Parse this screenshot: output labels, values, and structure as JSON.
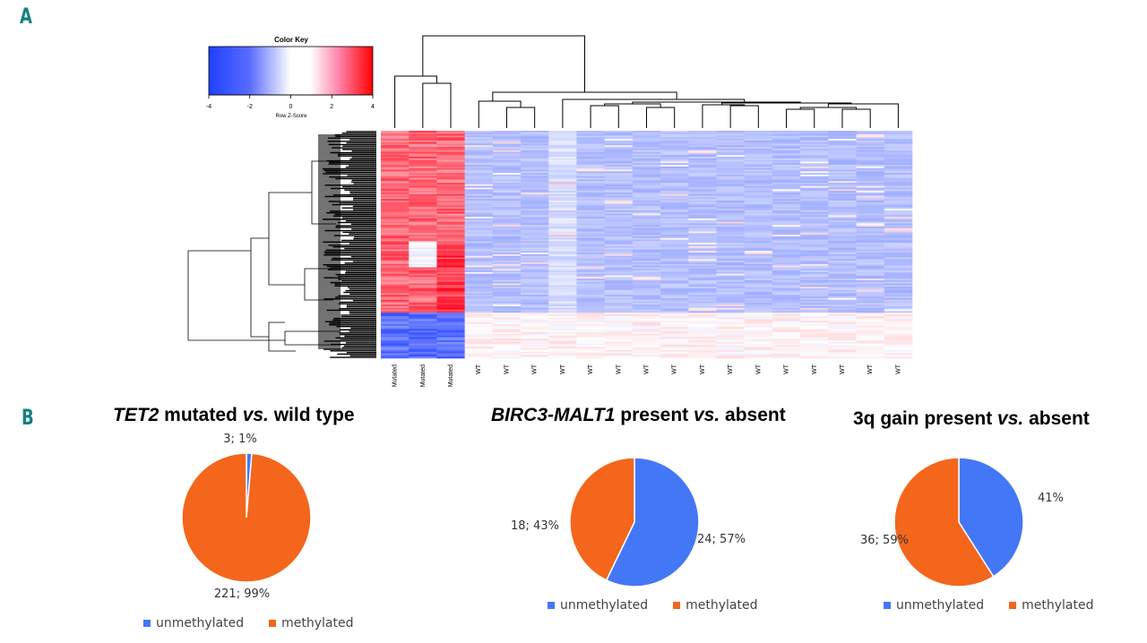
{
  "panels": {
    "a": "A",
    "b": "B"
  },
  "colors": {
    "blue": "#4477f6",
    "orange": "#f4661b",
    "teal": "#17807f"
  },
  "chart_data": [
    {
      "type": "heatmap",
      "title": "",
      "color_key": {
        "title": "Color Key",
        "xlabel": "Row Z-Score",
        "range": [
          -4,
          4
        ],
        "ticks": [
          "-4",
          "-2",
          "0",
          "2",
          "4"
        ],
        "low_color": "#2040ff",
        "mid_color": "#ffffff",
        "high_color": "#ff0000"
      },
      "columns": [
        "Mutated",
        "Mutated",
        "Mutated",
        "WT",
        "WT",
        "WT",
        "WT",
        "WT",
        "WT",
        "WT",
        "WT",
        "WT",
        "WT",
        "WT",
        "WT",
        "WT",
        "WT",
        "WT",
        "WT"
      ],
      "row_dendrogram": true,
      "column_dendrogram": true
    },
    {
      "type": "pie",
      "title": {
        "italic1": "TET2",
        "text1": " mutated ",
        "italic2": "vs.",
        "text2": " wild type"
      },
      "slices": [
        {
          "name": "unmethylated",
          "value": 3,
          "percent": 1,
          "label": "3; 1%"
        },
        {
          "name": "methylated",
          "value": 221,
          "percent": 99,
          "label": "221; 99%"
        }
      ],
      "legend": [
        "unmethylated",
        "methylated"
      ]
    },
    {
      "type": "pie",
      "title": {
        "italic1": "BIRC3-MALT1",
        "text1": " present ",
        "italic2": "vs.",
        "text2": " absent"
      },
      "slices": [
        {
          "name": "unmethylated",
          "value": 24,
          "percent": 57,
          "label": "24; 57%"
        },
        {
          "name": "methylated",
          "value": 18,
          "percent": 43,
          "label": "18; 43%"
        }
      ],
      "legend": [
        "unmethylated",
        "methylated"
      ]
    },
    {
      "type": "pie",
      "title": {
        "italic1": "",
        "text1": "3q gain present ",
        "italic2": "vs.",
        "text2": " absent"
      },
      "slices": [
        {
          "name": "unmethylated",
          "value": 25,
          "percent": 41,
          "label": "41%"
        },
        {
          "name": "methylated",
          "value": 36,
          "percent": 59,
          "label": "36; 59%"
        }
      ],
      "legend": [
        "unmethylated",
        "methylated"
      ]
    }
  ]
}
